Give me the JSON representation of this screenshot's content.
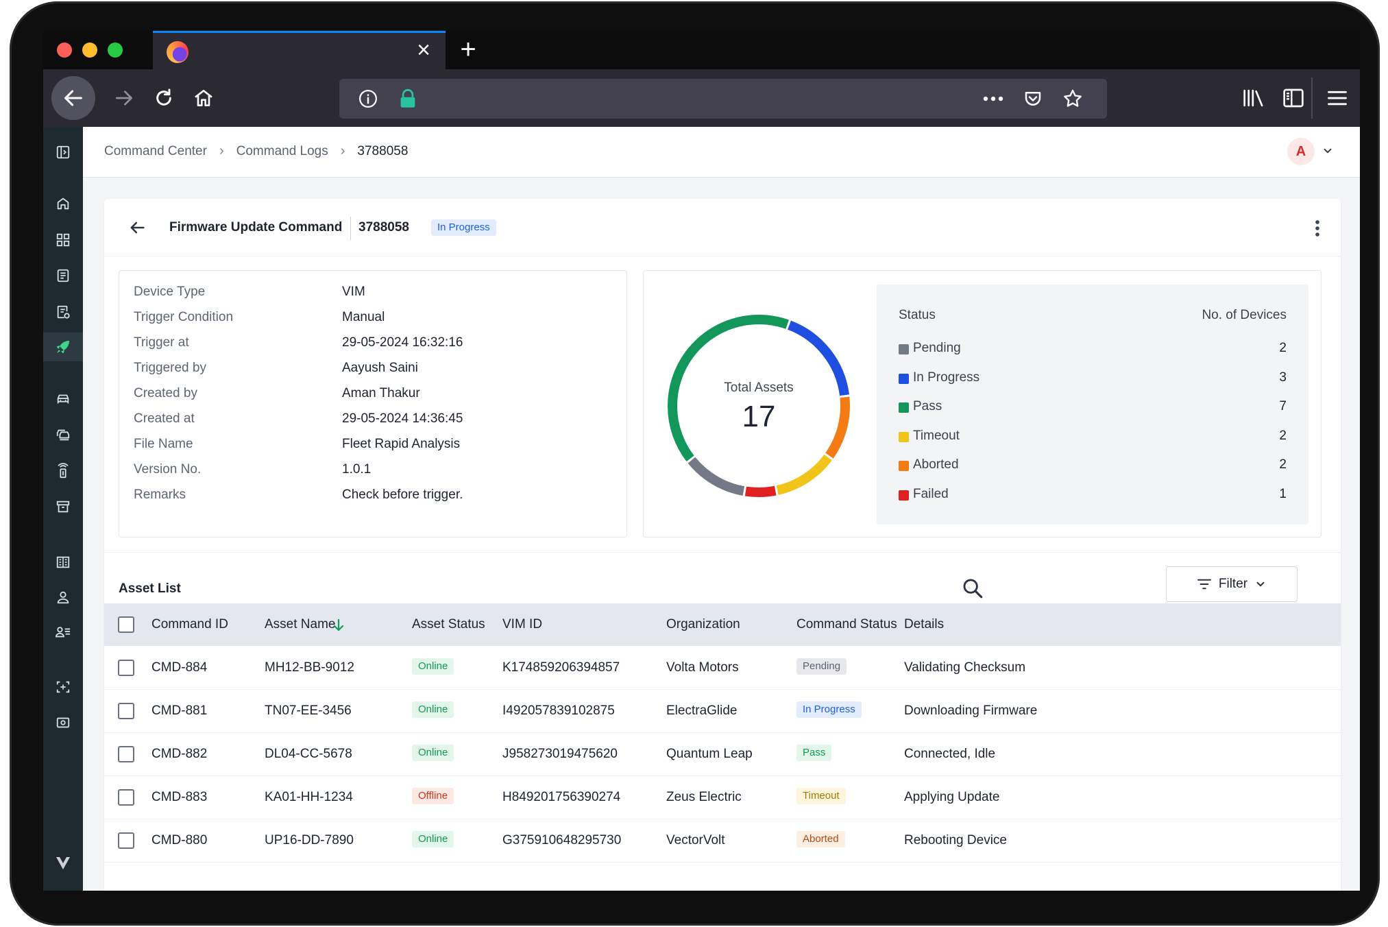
{
  "browser": {
    "tab": {
      "close_glyph": "×",
      "new_tab_glyph": "+"
    }
  },
  "breadcrumb": {
    "items": [
      "Command Center",
      "Command Logs",
      "3788058"
    ],
    "separator": "›"
  },
  "user": {
    "avatar_initial": "A"
  },
  "command": {
    "title": "Firmware Update Command",
    "id": "3788058",
    "status": "In Progress"
  },
  "details": [
    {
      "label": "Device Type",
      "value": "VIM"
    },
    {
      "label": "Trigger Condition",
      "value": "Manual"
    },
    {
      "label": "Trigger at",
      "value": "29-05-2024 16:32:16"
    },
    {
      "label": "Triggered by",
      "value": "Aayush Saini"
    },
    {
      "label": "Created by",
      "value": "Aman Thakur"
    },
    {
      "label": "Created at",
      "value": "29-05-2024 14:36:45"
    },
    {
      "label": "File Name",
      "value": "Fleet Rapid Analysis"
    },
    {
      "label": "Version No.",
      "value": "1.0.1"
    },
    {
      "label": "Remarks",
      "value": "Check before trigger."
    }
  ],
  "chart_data": {
    "type": "pie",
    "title": "Total Assets",
    "total": "17",
    "legend_headers": {
      "status": "Status",
      "count": "No. of Devices"
    },
    "categories": [
      "Pending",
      "In Progress",
      "Pass",
      "Timeout",
      "Aborted",
      "Failed"
    ],
    "values": [
      2,
      3,
      7,
      2,
      2,
      1
    ],
    "colors": [
      "#747a85",
      "#1f4fe0",
      "#12965a",
      "#f0c419",
      "#f47a14",
      "#e02121"
    ],
    "donut_order": [
      "In Progress",
      "Aborted",
      "Timeout",
      "Failed",
      "Pending",
      "Pass"
    ]
  },
  "asset_list": {
    "title": "Asset List",
    "filter_label": "Filter",
    "columns": [
      "Command ID",
      "Asset Name",
      "Asset Status",
      "VIM ID",
      "Organization",
      "Command Status",
      "Details"
    ],
    "rows": [
      {
        "command_id": "CMD-884",
        "asset_name": "MH12-BB-9012",
        "asset_status": "Online",
        "vim_id": "K174859206394857",
        "organization": "Volta Motors",
        "command_status": "Pending",
        "details": "Validating Checksum"
      },
      {
        "command_id": "CMD-881",
        "asset_name": "TN07-EE-3456",
        "asset_status": "Online",
        "vim_id": "I492057839102875",
        "organization": "ElectraGlide",
        "command_status": "In Progress",
        "details": "Downloading Firmware"
      },
      {
        "command_id": "CMD-882",
        "asset_name": "DL04-CC-5678",
        "asset_status": "Online",
        "vim_id": "J958273019475620",
        "organization": "Quantum Leap",
        "command_status": "Pass",
        "details": "Connected, Idle"
      },
      {
        "command_id": "CMD-883",
        "asset_name": "KA01-HH-1234",
        "asset_status": "Offline",
        "vim_id": "H849201756390274",
        "organization": "Zeus Electric",
        "command_status": "Timeout",
        "details": "Applying Update"
      },
      {
        "command_id": "CMD-880",
        "asset_name": "UP16-DD-7890",
        "asset_status": "Online",
        "vim_id": "G375910648295730",
        "organization": "VectorVolt",
        "command_status": "Aborted",
        "details": "Rebooting Device"
      }
    ]
  },
  "icons": {
    "rail": [
      "panel-toggle-icon",
      "home-icon",
      "dashboard-icon",
      "reports-icon",
      "command-logs-icon",
      "rocket-icon",
      "vehicle-icon",
      "fleet-icon",
      "charger-icon",
      "archive-icon",
      "building-icon",
      "user-icon",
      "user-list-icon",
      "scan-icon",
      "device-icon",
      "chevron-logo-icon"
    ]
  }
}
